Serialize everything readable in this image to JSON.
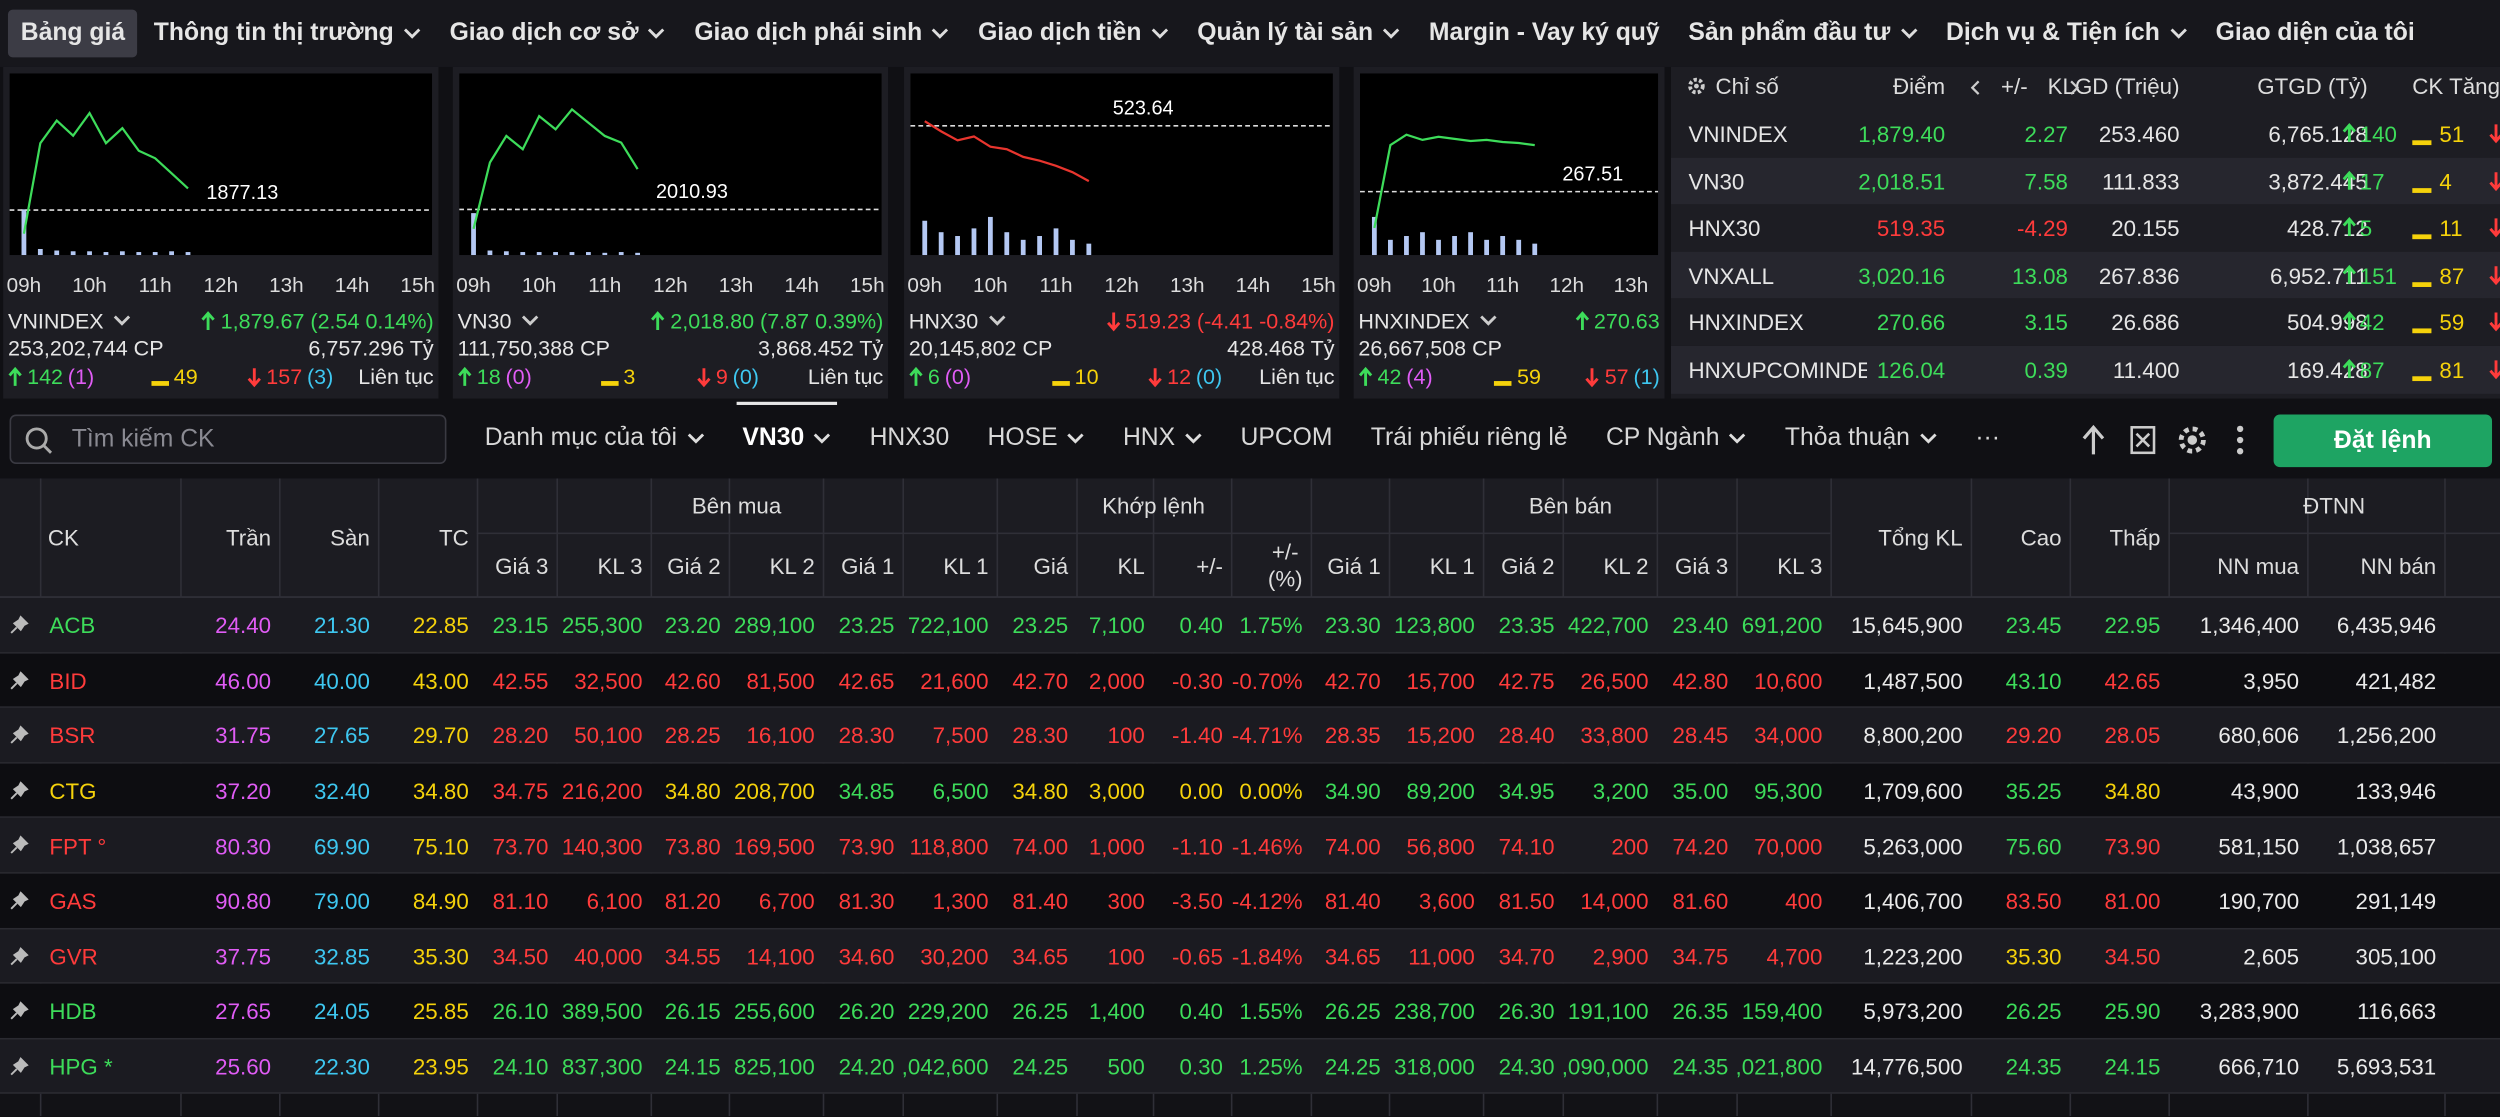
{
  "nav": [
    {
      "label": "Bảng giá",
      "menu": false,
      "active": true
    },
    {
      "label": "Thông tin thị trường",
      "menu": true
    },
    {
      "label": "Giao dịch cơ sở",
      "menu": true
    },
    {
      "label": "Giao dịch phái sinh",
      "menu": true
    },
    {
      "label": "Giao dịch tiền",
      "menu": true
    },
    {
      "label": "Quản lý tài sản",
      "menu": true
    },
    {
      "label": "Margin - Vay ký quỹ",
      "menu": false
    },
    {
      "label": "Sản phẩm đầu tư",
      "menu": true
    },
    {
      "label": "Dịch vụ & Tiện ích",
      "menu": true
    },
    {
      "label": "Giao diện của tôi",
      "menu": false
    }
  ],
  "index_cards": [
    {
      "name": "VNINDEX",
      "change": "1,879.67 (2.54 0.14%)",
      "trend": "up",
      "volume": "253,202,744 CP",
      "value": "6,757.296 Tỷ",
      "up": "142",
      "ceiling": "(1)",
      "unchanged": "49",
      "down": "157",
      "floor": "(3)",
      "session": "Liên tục",
      "ref_line": 1877.13,
      "line_color": "#3ddc5a",
      "ylim": [
        1872,
        1894
      ],
      "vlim": [
        0,
        100
      ],
      "xlim": [
        9,
        15
      ],
      "xticks": [
        {
          "value": 9,
          "label": "09h"
        },
        {
          "value": 10,
          "label": "10h"
        },
        {
          "value": 11,
          "label": "11h"
        },
        {
          "value": 12,
          "label": "12h"
        },
        {
          "value": 13,
          "label": "13h"
        },
        {
          "value": 14,
          "label": "14h"
        },
        {
          "value": 15,
          "label": "15h"
        }
      ],
      "x": [
        9,
        9.25,
        9.5,
        9.75,
        10,
        10.25,
        10.5,
        10.75,
        11,
        11.25,
        11.5
      ],
      "price": [
        1874,
        1886,
        1889,
        1887,
        1890,
        1886,
        1888,
        1885,
        1884,
        1882,
        1880
      ],
      "volume_bars": [
        60,
        8,
        6,
        5,
        5,
        4,
        5,
        4,
        4,
        5,
        4
      ]
    },
    {
      "name": "VN30",
      "change": "2,018.80 (7.87 0.39%)",
      "trend": "up",
      "volume": "111,750,388 CP",
      "value": "3,868.452 Tỷ",
      "up": "18",
      "ceiling": "(0)",
      "unchanged": "3",
      "down": "9",
      "floor": "(0)",
      "session": "Liên tục",
      "ref_line": 2010.93,
      "line_color": "#3ddc5a",
      "ylim": [
        2005,
        2030
      ],
      "vlim": [
        0,
        100
      ],
      "xlim": [
        9,
        15
      ],
      "xticks": [
        {
          "value": 9,
          "label": "09h"
        },
        {
          "value": 10,
          "label": "10h"
        },
        {
          "value": 11,
          "label": "11h"
        },
        {
          "value": 12,
          "label": "12h"
        },
        {
          "value": 13,
          "label": "13h"
        },
        {
          "value": 14,
          "label": "14h"
        },
        {
          "value": 15,
          "label": "15h"
        }
      ],
      "x": [
        9,
        9.25,
        9.5,
        9.75,
        10,
        10.25,
        10.5,
        10.75,
        11,
        11.25,
        11.5
      ],
      "price": [
        2008,
        2018,
        2022,
        2020,
        2025,
        2023,
        2026,
        2024,
        2022,
        2021,
        2017
      ],
      "volume_bars": [
        55,
        6,
        5,
        4,
        4,
        4,
        4,
        4,
        3,
        4,
        3
      ]
    },
    {
      "name": "HNX30",
      "change": "519.23 (-4.41 -0.84%)",
      "trend": "down",
      "volume": "20,145,802 CP",
      "value": "428.468 Tỷ",
      "up": "6",
      "ceiling": "(0)",
      "unchanged": "10",
      "down": "12",
      "floor": "(0)",
      "session": "Liên tục",
      "ref_line": 523.64,
      "line_color": "#e8352e",
      "ylim": [
        514,
        527
      ],
      "vlim": [
        0,
        100
      ],
      "xlim": [
        9,
        15
      ],
      "xticks": [
        {
          "value": 9,
          "label": "09h"
        },
        {
          "value": 10,
          "label": "10h"
        },
        {
          "value": 11,
          "label": "11h"
        },
        {
          "value": 12,
          "label": "12h"
        },
        {
          "value": 13,
          "label": "13h"
        },
        {
          "value": 14,
          "label": "14h"
        },
        {
          "value": 15,
          "label": "15h"
        }
      ],
      "x": [
        9,
        9.25,
        9.5,
        9.75,
        10,
        10.25,
        10.5,
        10.75,
        11,
        11.25,
        11.5
      ],
      "price": [
        524,
        523.2,
        522.5,
        522.8,
        522,
        521.8,
        521.2,
        520.9,
        520.5,
        520,
        519.3
      ],
      "volume_bars": [
        45,
        30,
        25,
        35,
        50,
        30,
        20,
        25,
        35,
        20,
        15
      ]
    },
    {
      "name": "HNXINDEX",
      "change": "270.63",
      "trend": "up",
      "volume": "26,667,508 CP",
      "up": "42",
      "ceiling": "(4)",
      "unchanged": "59",
      "down": "57",
      "floor": "(1)",
      "ref_line": 267.51,
      "line_color": "#3ddc5a",
      "ylim": [
        262,
        278
      ],
      "vlim": [
        0,
        100
      ],
      "xlim": [
        9,
        13.2
      ],
      "xticks": [
        {
          "value": 9,
          "label": "09h"
        },
        {
          "value": 10,
          "label": "10h"
        },
        {
          "value": 11,
          "label": "11h"
        },
        {
          "value": 12,
          "label": "12h"
        },
        {
          "value": 13,
          "label": "13h"
        }
      ],
      "x": [
        9,
        9.25,
        9.5,
        9.75,
        10,
        10.25,
        10.5,
        10.75,
        11,
        11.25,
        11.5
      ],
      "price": [
        264,
        272,
        273,
        272.5,
        272.8,
        272.6,
        272.4,
        272.5,
        272.3,
        272.2,
        272
      ],
      "volume_bars": [
        50,
        20,
        25,
        30,
        20,
        25,
        30,
        20,
        25,
        20,
        15
      ]
    }
  ],
  "index_table": {
    "columns": [
      "Chỉ số",
      "Điểm",
      "+/-",
      "KLGD (Triệu)",
      "GTGD (Tỷ)",
      "CK Tăng/"
    ],
    "rows": [
      {
        "name": "VNINDEX",
        "point": "1,879.40",
        "change": "2.27",
        "volume": "253.460",
        "value": "6,765.128",
        "up": "140",
        "unchanged": "51"
      },
      {
        "name": "VN30",
        "point": "2,018.51",
        "change": "7.58",
        "volume": "111.833",
        "value": "3,872.445",
        "up": "17",
        "unchanged": "4"
      },
      {
        "name": "HNX30",
        "point": "519.35",
        "change": "-4.29",
        "volume": "20.155",
        "value": "428.712",
        "up": "5",
        "unchanged": "11"
      },
      {
        "name": "VNXALL",
        "point": "3,020.16",
        "change": "13.08",
        "volume": "267.836",
        "value": "6,952.711",
        "up": "151",
        "unchanged": "87"
      },
      {
        "name": "HNXINDEX",
        "point": "270.66",
        "change": "3.15",
        "volume": "26.686",
        "value": "504.998",
        "up": "42",
        "unchanged": "59"
      },
      {
        "name": "HNXUPCOMINDEX",
        "point": "126.04",
        "change": "0.39",
        "volume": "11.400",
        "value": "169.428",
        "up": "87",
        "unchanged": "81"
      }
    ]
  },
  "toolbar": {
    "search_placeholder": "Tìm kiếm CK",
    "tabs": [
      {
        "label": "Danh mục của tôi",
        "menu": true
      },
      {
        "label": "VN30",
        "menu": true,
        "active": true
      },
      {
        "label": "HNX30",
        "menu": false
      },
      {
        "label": "HOSE",
        "menu": true
      },
      {
        "label": "HNX",
        "menu": true
      },
      {
        "label": "UPCOM",
        "menu": false
      },
      {
        "label": "Trái phiếu riêng lẻ",
        "menu": false
      },
      {
        "label": "CP Ngành",
        "menu": true
      },
      {
        "label": "Thỏa thuận",
        "menu": true
      },
      {
        "label": "···",
        "menu": false
      }
    ],
    "order_button": "Đặt lệnh"
  },
  "stock_table": {
    "groups": [
      "Bên mua",
      "Khớp lệnh",
      "Bên bán",
      "ĐTNN"
    ],
    "columns": [
      "CK",
      "Trần",
      "Sàn",
      "TC",
      "Giá 3",
      "KL 3",
      "Giá 2",
      "KL 2",
      "Giá 1",
      "KL 1",
      "Giá",
      "KL",
      "+/-",
      "+/-\n(%)",
      "Giá 1",
      "KL 1",
      "Giá 2",
      "KL 2",
      "Giá 3",
      "KL 3",
      "Tổng KL",
      "Cao",
      "Thấp",
      "NN mua",
      "NN bán"
    ],
    "rows": [
      {
        "symbol": "ACB",
        "cells": [
          "24.40",
          "21.30",
          "22.85",
          "23.15",
          "255,300",
          "23.20",
          "289,100",
          "23.25",
          "722,100",
          "23.25",
          "7,100",
          "0.40",
          "1.75%",
          "23.30",
          "123,800",
          "23.35",
          "422,700",
          "23.40",
          "691,200",
          "15,645,900",
          "23.45",
          "22.95",
          "1,346,400",
          "6,435,946"
        ]
      },
      {
        "symbol": "BID",
        "cells": [
          "46.00",
          "40.00",
          "43.00",
          "42.55",
          "32,500",
          "42.60",
          "81,500",
          "42.65",
          "21,600",
          "42.70",
          "2,000",
          "-0.30",
          "-0.70%",
          "42.70",
          "15,700",
          "42.75",
          "26,500",
          "42.80",
          "10,600",
          "1,487,500",
          "43.10",
          "42.65",
          "3,950",
          "421,482"
        ]
      },
      {
        "symbol": "BSR",
        "cells": [
          "31.75",
          "27.65",
          "29.70",
          "28.20",
          "50,100",
          "28.25",
          "16,100",
          "28.30",
          "7,500",
          "28.30",
          "100",
          "-1.40",
          "-4.71%",
          "28.35",
          "15,200",
          "28.40",
          "33,800",
          "28.45",
          "34,000",
          "8,800,200",
          "29.20",
          "28.05",
          "680,606",
          "1,256,200"
        ]
      },
      {
        "symbol": "CTG",
        "cells": [
          "37.20",
          "32.40",
          "34.80",
          "34.75",
          "216,200",
          "34.80",
          "208,700",
          "34.85",
          "6,500",
          "34.80",
          "3,000",
          "0.00",
          "0.00%",
          "34.90",
          "89,200",
          "34.95",
          "3,200",
          "35.00",
          "95,300",
          "1,709,600",
          "35.25",
          "34.80",
          "43,900",
          "133,946"
        ]
      },
      {
        "symbol": "FPT °",
        "cells": [
          "80.30",
          "69.90",
          "75.10",
          "73.70",
          "140,300",
          "73.80",
          "169,500",
          "73.90",
          "118,800",
          "74.00",
          "1,000",
          "-1.10",
          "-1.46%",
          "74.00",
          "56,800",
          "74.10",
          "200",
          "74.20",
          "70,000",
          "5,263,000",
          "75.60",
          "73.90",
          "581,150",
          "1,038,657"
        ]
      },
      {
        "symbol": "GAS",
        "cells": [
          "90.80",
          "79.00",
          "84.90",
          "81.10",
          "6,100",
          "81.20",
          "6,700",
          "81.30",
          "1,300",
          "81.40",
          "300",
          "-3.50",
          "-4.12%",
          "81.40",
          "3,600",
          "81.50",
          "14,000",
          "81.60",
          "400",
          "1,406,700",
          "83.50",
          "81.00",
          "190,700",
          "291,149"
        ]
      },
      {
        "symbol": "GVR",
        "cells": [
          "37.75",
          "32.85",
          "35.30",
          "34.50",
          "40,000",
          "34.55",
          "14,100",
          "34.60",
          "30,200",
          "34.65",
          "100",
          "-0.65",
          "-1.84%",
          "34.65",
          "11,000",
          "34.70",
          "2,900",
          "34.75",
          "4,700",
          "1,223,200",
          "35.30",
          "34.50",
          "2,605",
          "305,100"
        ]
      },
      {
        "symbol": "HDB",
        "cells": [
          "27.65",
          "24.05",
          "25.85",
          "26.10",
          "389,500",
          "26.15",
          "255,600",
          "26.20",
          "229,200",
          "26.25",
          "1,400",
          "0.40",
          "1.55%",
          "26.25",
          "238,700",
          "26.30",
          "191,100",
          "26.35",
          "159,400",
          "5,973,200",
          "26.25",
          "25.90",
          "3,283,900",
          "116,663"
        ]
      },
      {
        "symbol": "HPG *",
        "cells": [
          "25.60",
          "22.30",
          "23.95",
          "24.10",
          "837,300",
          "24.15",
          "825,100",
          "24.20",
          ",042,600",
          "24.25",
          "500",
          "0.30",
          "1.25%",
          "24.25",
          "318,000",
          "24.30",
          ",090,000",
          "24.35",
          ",021,800",
          "14,776,500",
          "24.35",
          "24.15",
          "666,710",
          "5,693,531"
        ]
      }
    ]
  }
}
